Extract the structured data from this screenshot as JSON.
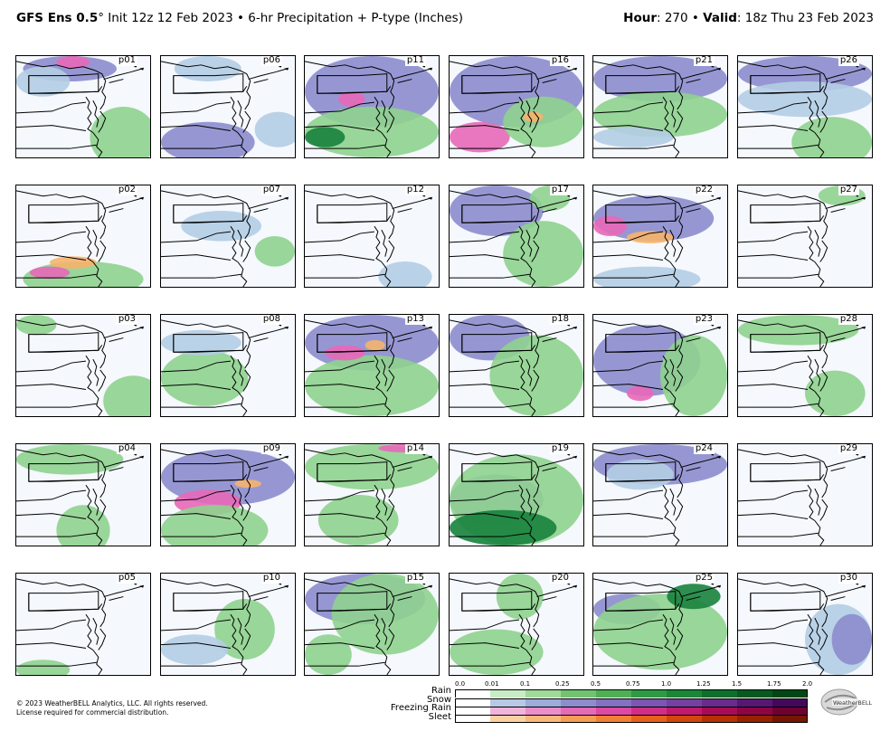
{
  "title": {
    "model": "GFS Ens 0.5",
    "degree": "°",
    "init": "Init 12z 12 Feb 2023",
    "sep": "•",
    "product": "6-hr Precipitation + P-type (Inches)",
    "hour_label": "Hour",
    "hour_value": ": 270",
    "valid_label": "Valid",
    "valid_value": ": 18z Thu 23 Feb 2023"
  },
  "panels": [
    {
      "label": "p01",
      "blobs": [
        [
          "snow",
          0.05,
          0.0,
          0.7,
          0.25
        ],
        [
          "rain",
          0.55,
          0.5,
          0.5,
          0.6
        ],
        [
          "pink",
          0.3,
          0.0,
          0.25,
          0.12
        ],
        [
          "light",
          0.0,
          0.1,
          0.4,
          0.3
        ]
      ]
    },
    {
      "label": "p02",
      "blobs": [
        [
          "rain",
          0.05,
          0.75,
          0.9,
          0.35
        ],
        [
          "orange",
          0.25,
          0.7,
          0.35,
          0.12
        ],
        [
          "pink",
          0.1,
          0.8,
          0.3,
          0.12
        ]
      ]
    },
    {
      "label": "p03",
      "blobs": [
        [
          "rain",
          0.65,
          0.6,
          0.45,
          0.5
        ],
        [
          "rain",
          0.0,
          0.0,
          0.3,
          0.2
        ]
      ]
    },
    {
      "label": "p04",
      "blobs": [
        [
          "rain",
          0.0,
          0.0,
          0.8,
          0.3
        ],
        [
          "rain",
          0.3,
          0.6,
          0.4,
          0.5
        ]
      ]
    },
    {
      "label": "p05",
      "blobs": [
        [
          "rain",
          0.0,
          0.85,
          0.4,
          0.2
        ]
      ]
    },
    {
      "label": "p06",
      "blobs": [
        [
          "snow",
          0.0,
          0.65,
          0.7,
          0.4
        ],
        [
          "light",
          0.7,
          0.55,
          0.35,
          0.35
        ],
        [
          "light",
          0.1,
          0.0,
          0.5,
          0.25
        ]
      ]
    },
    {
      "label": "p07",
      "blobs": [
        [
          "light",
          0.15,
          0.25,
          0.6,
          0.3
        ],
        [
          "rain",
          0.7,
          0.5,
          0.3,
          0.3
        ]
      ]
    },
    {
      "label": "p08",
      "blobs": [
        [
          "rain",
          0.0,
          0.35,
          0.65,
          0.55
        ],
        [
          "light",
          0.0,
          0.15,
          0.6,
          0.25
        ]
      ]
    },
    {
      "label": "p09",
      "blobs": [
        [
          "snow",
          0.0,
          0.05,
          1.0,
          0.55
        ],
        [
          "pink",
          0.1,
          0.45,
          0.5,
          0.25
        ],
        [
          "rain",
          0.0,
          0.6,
          0.8,
          0.5
        ],
        [
          "orange",
          0.55,
          0.35,
          0.2,
          0.08
        ]
      ]
    },
    {
      "label": "p10",
      "blobs": [
        [
          "rain",
          0.4,
          0.25,
          0.45,
          0.6
        ],
        [
          "light",
          0.0,
          0.6,
          0.5,
          0.3
        ]
      ]
    },
    {
      "label": "p11",
      "blobs": [
        [
          "snow",
          0.0,
          0.0,
          1.0,
          0.7
        ],
        [
          "rain",
          0.0,
          0.5,
          1.0,
          0.5
        ],
        [
          "dkgreen",
          0.0,
          0.7,
          0.3,
          0.2
        ],
        [
          "pink",
          0.25,
          0.35,
          0.2,
          0.15
        ]
      ]
    },
    {
      "label": "p12",
      "blobs": [
        [
          "light",
          0.55,
          0.75,
          0.4,
          0.3
        ]
      ]
    },
    {
      "label": "p13",
      "blobs": [
        [
          "snow",
          0.0,
          0.0,
          1.0,
          0.55
        ],
        [
          "rain",
          0.0,
          0.4,
          1.0,
          0.6
        ],
        [
          "orange",
          0.45,
          0.25,
          0.15,
          0.1
        ],
        [
          "pink",
          0.15,
          0.3,
          0.3,
          0.15
        ]
      ]
    },
    {
      "label": "p14",
      "blobs": [
        [
          "rain",
          0.0,
          0.0,
          1.0,
          0.45
        ],
        [
          "rain",
          0.1,
          0.5,
          0.6,
          0.5
        ],
        [
          "pink",
          0.55,
          0.0,
          0.35,
          0.08
        ]
      ]
    },
    {
      "label": "p15",
      "blobs": [
        [
          "snow",
          0.0,
          0.0,
          0.9,
          0.5
        ],
        [
          "rain",
          0.2,
          0.0,
          0.8,
          0.8
        ],
        [
          "rain",
          0.0,
          0.6,
          0.35,
          0.4
        ]
      ]
    },
    {
      "label": "p16",
      "blobs": [
        [
          "snow",
          0.0,
          0.0,
          1.0,
          0.7
        ],
        [
          "pink",
          0.0,
          0.65,
          0.45,
          0.3
        ],
        [
          "rain",
          0.4,
          0.4,
          0.6,
          0.5
        ],
        [
          "orange",
          0.55,
          0.55,
          0.15,
          0.1
        ]
      ]
    },
    {
      "label": "p17",
      "blobs": [
        [
          "snow",
          0.0,
          0.0,
          0.7,
          0.5
        ],
        [
          "rain",
          0.4,
          0.35,
          0.6,
          0.65
        ],
        [
          "rain",
          0.6,
          0.0,
          0.3,
          0.25
        ]
      ]
    },
    {
      "label": "p18",
      "blobs": [
        [
          "snow",
          0.0,
          0.0,
          0.6,
          0.45
        ],
        [
          "rain",
          0.3,
          0.2,
          0.7,
          0.8
        ]
      ]
    },
    {
      "label": "p19",
      "blobs": [
        [
          "snow",
          0.0,
          0.3,
          0.7,
          0.5
        ],
        [
          "rain",
          0.0,
          0.1,
          1.0,
          0.9
        ],
        [
          "dkgreen",
          0.0,
          0.65,
          0.8,
          0.35
        ]
      ]
    },
    {
      "label": "p20",
      "blobs": [
        [
          "rain",
          0.0,
          0.55,
          0.7,
          0.45
        ],
        [
          "rain",
          0.35,
          0.0,
          0.35,
          0.45
        ]
      ]
    },
    {
      "label": "p21",
      "blobs": [
        [
          "snow",
          0.0,
          0.0,
          1.0,
          0.45
        ],
        [
          "rain",
          0.0,
          0.35,
          1.0,
          0.45
        ],
        [
          "light",
          0.0,
          0.7,
          0.6,
          0.2
        ]
      ]
    },
    {
      "label": "p22",
      "blobs": [
        [
          "snow",
          0.0,
          0.1,
          0.9,
          0.45
        ],
        [
          "orange",
          0.25,
          0.45,
          0.35,
          0.12
        ],
        [
          "pink",
          0.0,
          0.3,
          0.25,
          0.2
        ],
        [
          "light",
          0.0,
          0.8,
          0.8,
          0.25
        ]
      ]
    },
    {
      "label": "p23",
      "blobs": [
        [
          "snow",
          0.0,
          0.1,
          0.8,
          0.7
        ],
        [
          "rain",
          0.5,
          0.2,
          0.5,
          0.8
        ],
        [
          "pink",
          0.25,
          0.7,
          0.2,
          0.15
        ]
      ]
    },
    {
      "label": "p24",
      "blobs": [
        [
          "snow",
          0.0,
          0.0,
          1.0,
          0.4
        ],
        [
          "light",
          0.1,
          0.15,
          0.5,
          0.3
        ]
      ]
    },
    {
      "label": "p25",
      "blobs": [
        [
          "snow",
          0.0,
          0.2,
          0.5,
          0.3
        ],
        [
          "rain",
          0.0,
          0.2,
          1.0,
          0.75
        ],
        [
          "dkgreen",
          0.55,
          0.1,
          0.4,
          0.25
        ]
      ]
    },
    {
      "label": "p26",
      "blobs": [
        [
          "snow",
          0.0,
          0.0,
          1.0,
          0.35
        ],
        [
          "light",
          0.0,
          0.25,
          1.0,
          0.35
        ],
        [
          "rain",
          0.4,
          0.6,
          0.6,
          0.5
        ]
      ]
    },
    {
      "label": "p27",
      "blobs": [
        [
          "rain",
          0.6,
          0.0,
          0.35,
          0.2
        ]
      ]
    },
    {
      "label": "p28",
      "blobs": [
        [
          "rain",
          0.0,
          0.0,
          0.9,
          0.3
        ],
        [
          "rain",
          0.5,
          0.55,
          0.45,
          0.45
        ]
      ]
    },
    {
      "label": "p29",
      "blobs": []
    },
    {
      "label": "p30",
      "blobs": [
        [
          "light",
          0.5,
          0.3,
          0.5,
          0.7
        ],
        [
          "snow",
          0.7,
          0.4,
          0.3,
          0.5
        ]
      ]
    }
  ],
  "colors": {
    "light": "#b4cde4",
    "snow": "#8c8ccd",
    "rain": "#8fd18e",
    "dkgreen": "#17823c",
    "pink": "#e868b8",
    "orange": "#f6b26b",
    "map_bg": "#f5f8fd",
    "outline": "#000000"
  },
  "legend": {
    "ticks": [
      "0.0",
      "0.01",
      "0.1",
      "0.25",
      "0.5",
      "0.75",
      "1.0",
      "1.25",
      "1.5",
      "1.75",
      "2.0"
    ],
    "rows": [
      {
        "label": "Rain",
        "colors": [
          "#ffffff",
          "#c8ecc4",
          "#a0d99a",
          "#72c271",
          "#4faf56",
          "#2f9a45",
          "#1b8538",
          "#0f6e2b",
          "#065a20",
          "#014716"
        ]
      },
      {
        "label": "Snow",
        "colors": [
          "#ffffff",
          "#b7c9e4",
          "#9eacd9",
          "#8e8ccd",
          "#8371c2",
          "#7b56b3",
          "#7441a0",
          "#6a2c8a",
          "#571874",
          "#43085c"
        ]
      },
      {
        "label": "Freezing Rain",
        "colors": [
          "#ffffff",
          "#f3b4db",
          "#ec8ec9",
          "#e56bb7",
          "#de4aa1",
          "#d12f86",
          "#bf1a6c",
          "#a80c55",
          "#8d0543",
          "#6f0131"
        ]
      },
      {
        "label": "Sleet",
        "colors": [
          "#ffffff",
          "#fbd1a3",
          "#f8b87b",
          "#f59d55",
          "#f08034",
          "#e5621b",
          "#d1470d",
          "#b63205",
          "#962202",
          "#741601"
        ]
      }
    ]
  },
  "footer": {
    "line1": "© 2023 WeatherBELL Analytics, LLC. All rights reserved.",
    "line2": "License required for commercial distribution."
  },
  "logo_text": "WeatherBELL"
}
